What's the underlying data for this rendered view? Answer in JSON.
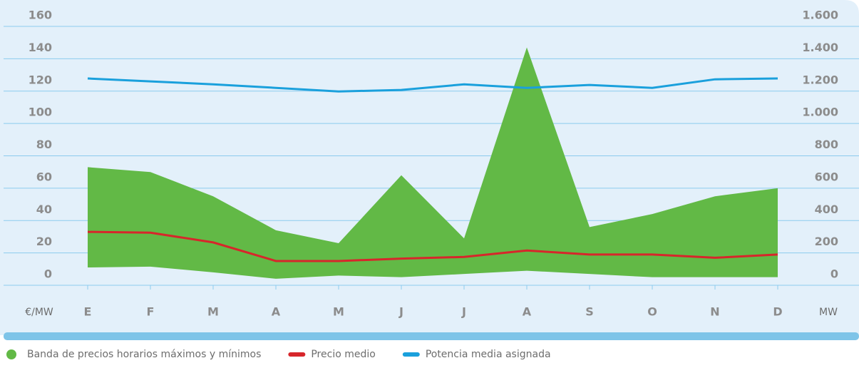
{
  "chart_data": {
    "type": "line",
    "categories": [
      "E",
      "F",
      "M",
      "A",
      "M",
      "J",
      "J",
      "A",
      "S",
      "O",
      "N",
      "D"
    ],
    "y_unit": "€/MW",
    "y2_unit": "MW",
    "ylim": [
      0,
      160
    ],
    "yticks": [
      0,
      20,
      40,
      60,
      80,
      100,
      120,
      140,
      160
    ],
    "y2lim": [
      0,
      1600
    ],
    "y2ticks": [
      0,
      200,
      400,
      600,
      800,
      {
        "value": 1000,
        "label": "1.000"
      },
      {
        "value": 1200,
        "label": "1.200"
      },
      {
        "value": 1400,
        "label": "1.400"
      },
      {
        "value": 1600,
        "label": "1.600"
      }
    ],
    "grid": true,
    "series": [
      {
        "name": "Banda de precios horarios máximos y mínimos",
        "color": "#62b946",
        "high": [
          73,
          70,
          55,
          34,
          26,
          68,
          29,
          147,
          36,
          44,
          55,
          60
        ],
        "low": [
          11,
          11.5,
          8,
          4,
          6,
          5,
          7,
          9,
          7,
          5,
          5,
          5
        ]
      },
      {
        "name": "Precio medio",
        "color": "#d7262b",
        "values": [
          33,
          32.5,
          26.5,
          15,
          15,
          16.5,
          17.5,
          21.5,
          19,
          19,
          17,
          19
        ]
      },
      {
        "name": "Potencia media asignada",
        "color": "#1aa0dc",
        "axis": "y2",
        "values": [
          1278,
          1260,
          1242,
          1220,
          1198,
          1207,
          1242,
          1220,
          1238,
          1220,
          1273,
          1278
        ]
      }
    ]
  }
}
